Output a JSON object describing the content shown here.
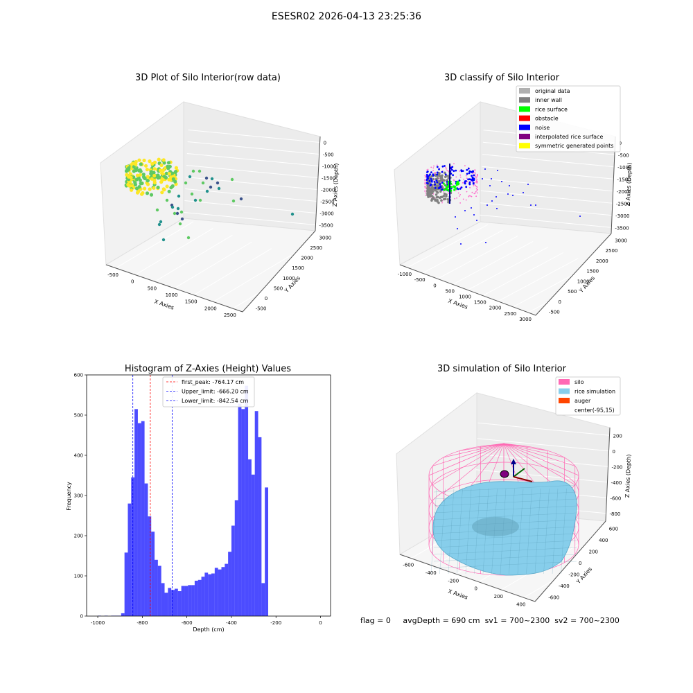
{
  "figure": {
    "title": "ESESR02 2026-04-13 23:25:36"
  },
  "status_line": {
    "flag": "flag = 0",
    "avg_depth": "avgDepth = 690 cm",
    "sv1": "sv1 = 700~2300",
    "sv2": "sv2 = 700~2300"
  },
  "chart_data": [
    {
      "id": "raw",
      "type": "scatter",
      "title": "3D Plot of Silo Interior(row data)",
      "xlabel": "X Axies",
      "ylabel": "Y Axies",
      "zlabel": "Z Axies (Depth)",
      "xticks": [
        "-500",
        "0",
        "500",
        "1000",
        "1500",
        "2000",
        "2500"
      ],
      "yticks": [
        "-500",
        "0",
        "500",
        "1000",
        "1500",
        "2000",
        "2500",
        "3000"
      ],
      "zticks": [
        "0",
        "-500",
        "-1000",
        "-1500",
        "-2000",
        "-2500",
        "-3000",
        "-3500"
      ],
      "colormap": [
        "#440154",
        "#3b528b",
        "#21918c",
        "#5ec962",
        "#fde725"
      ]
    },
    {
      "id": "classify",
      "type": "scatter",
      "title": "3D classify of Silo Interior",
      "xlabel": "X Axies",
      "ylabel": "Y Axies",
      "zlabel": "Z Axies (Depth)",
      "xticks": [
        "-1000",
        "-500",
        "0",
        "500",
        "1000",
        "1500",
        "2000",
        "2500",
        "3000"
      ],
      "yticks": [
        "-500",
        "0",
        "500",
        "1000",
        "1500",
        "2000",
        "2500",
        "3000"
      ],
      "zticks": [
        "0",
        "-500",
        "-1000",
        "-1500",
        "-2000",
        "-2500",
        "-3000",
        "-3500"
      ],
      "legend": [
        {
          "name": "original data",
          "color": "#b0b0b0"
        },
        {
          "name": "inner wall",
          "color": "#808080"
        },
        {
          "name": "rice surface",
          "color": "#00ff00"
        },
        {
          "name": "obstacle",
          "color": "#ff0000"
        },
        {
          "name": "noise",
          "color": "#0000ff"
        },
        {
          "name": "interpolated rice surface",
          "color": "#800080"
        },
        {
          "name": "symmetric generated points",
          "color": "#ffff00"
        }
      ],
      "legend_position": "top-right"
    },
    {
      "id": "hist",
      "type": "bar",
      "title": "Histogram of Z-Axies (Height) Values",
      "xlabel": "Depth (cm)",
      "ylabel": "Frequency",
      "xlim": [
        -1050,
        45
      ],
      "ylim": [
        0,
        600
      ],
      "xticks": [
        -1000,
        -800,
        -600,
        -400,
        -200,
        0
      ],
      "yticks": [
        0,
        100,
        200,
        300,
        400,
        500,
        600
      ],
      "bin_width": 15,
      "bin_start": -1000,
      "values": [
        1,
        0,
        1,
        0,
        1,
        1,
        1,
        7,
        158,
        280,
        345,
        515,
        480,
        485,
        330,
        248,
        210,
        140,
        125,
        82,
        58,
        70,
        65,
        68,
        62,
        75,
        75,
        77,
        77,
        88,
        90,
        98,
        108,
        104,
        106,
        120,
        116,
        122,
        130,
        160,
        225,
        288,
        528,
        515,
        573,
        390,
        352,
        510,
        445,
        82,
        320
      ],
      "bar_color": "#0000ff",
      "bar_opacity": 0.7,
      "lines": [
        {
          "label": "first_peak: -764.17 cm",
          "x": -764.17,
          "color": "#ff0000"
        },
        {
          "label": "Upper_limit: -666.20 cm",
          "x": -666.2,
          "color": "#0000ff"
        },
        {
          "label": "Lower_limit: -842.54 cm",
          "x": -842.54,
          "color": "#0000ff"
        }
      ],
      "legend_position": "top-center"
    },
    {
      "id": "sim",
      "type": "area",
      "title": "3D simulation of Silo Interior",
      "xlabel": "X Axies",
      "ylabel": "Y Axies",
      "zlabel": "Z Axies (Depth)",
      "xticks": [
        "-600",
        "-400",
        "-200",
        "0",
        "200",
        "400"
      ],
      "yticks": [
        "-600",
        "-400",
        "-200",
        "0",
        "200",
        "400",
        "600"
      ],
      "zticks": [
        "200",
        "0",
        "-200",
        "-400",
        "-600",
        "-800"
      ],
      "legend": [
        {
          "name": "silo",
          "color": "#ff69b4"
        },
        {
          "name": "rice simulation",
          "color": "#87ceeb"
        },
        {
          "name": "auger",
          "color": "#ff4500"
        },
        {
          "name": "center(-95,15)",
          "color": ""
        }
      ],
      "legend_position": "top-right"
    }
  ]
}
